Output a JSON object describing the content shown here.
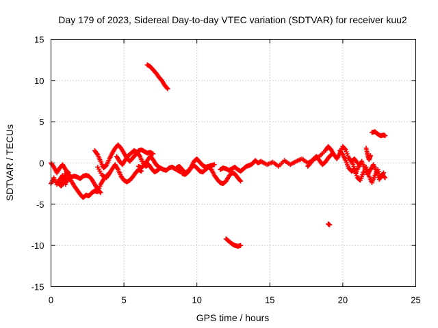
{
  "chart_data": {
    "type": "scatter",
    "title": "Day 179 of 2023, Sidereal Day-to-day VTEC variation (SDTVAR) for receiver kuu2",
    "xlabel": "GPS time / hours",
    "ylabel": "SDTVAR / TECUs",
    "xlim": [
      0,
      25
    ],
    "ylim": [
      -15,
      15
    ],
    "xticks": [
      0,
      5,
      10,
      15,
      20,
      25
    ],
    "yticks": [
      -15,
      -10,
      -5,
      0,
      5,
      10,
      15
    ],
    "grid": true,
    "marker": "+",
    "color": "#ff0000",
    "series": [
      {
        "name": "SDTVAR",
        "segments": [
          {
            "x": [
              0.0,
              0.2,
              0.4,
              0.6,
              0.8,
              1.0,
              1.2,
              1.4,
              1.6,
              1.8,
              2.0,
              2.2,
              2.4,
              2.6,
              2.8,
              3.0,
              3.2,
              3.4,
              3.6,
              3.8,
              4.0
            ],
            "y": [
              -2.5,
              -1.8,
              -2.6,
              -2.0,
              -1.5,
              -2.6,
              -1.8,
              -2.2,
              -2.8,
              -3.3,
              -3.8,
              -4.2,
              -3.9,
              -4.0,
              -3.6,
              -3.4,
              -3.5,
              -2.6,
              -2.0,
              -1.6,
              -1.2
            ]
          },
          {
            "x": [
              0.0,
              0.2,
              0.4,
              0.6,
              0.8,
              1.0,
              1.2,
              1.4,
              1.6,
              1.8,
              2.0,
              2.2,
              2.4,
              2.6,
              2.8,
              3.0,
              3.2,
              3.4
            ],
            "y": [
              0.0,
              -0.5,
              -1.2,
              -0.6,
              -0.2,
              -0.8,
              -1.5,
              -1.7,
              -1.6,
              -1.7,
              -1.9,
              -1.6,
              -1.5,
              -1.6,
              -2.0,
              -2.6,
              -3.2,
              -3.6
            ]
          },
          {
            "x": [
              0.5,
              0.6,
              0.7,
              0.8,
              0.9,
              1.0,
              1.1,
              1.2
            ],
            "y": [
              -2.2,
              -2.6,
              -2.8,
              -2.5,
              -2.0,
              -1.5,
              -1.0,
              -1.2
            ]
          },
          {
            "x": [
              3.0,
              3.2,
              3.4,
              3.6,
              3.8,
              4.0,
              4.2,
              4.4,
              4.6,
              4.8,
              5.0,
              5.2,
              5.4,
              5.6,
              5.8,
              6.0,
              6.2,
              6.4,
              6.6,
              6.8,
              7.0
            ],
            "y": [
              1.5,
              1.0,
              0.2,
              -0.6,
              -0.3,
              0.5,
              1.2,
              1.8,
              2.2,
              1.8,
              1.2,
              0.6,
              0.2,
              0.6,
              1.0,
              1.5,
              1.6,
              1.4,
              1.2,
              1.3,
              1.1
            ]
          },
          {
            "x": [
              3.2,
              3.5,
              3.8,
              4.0,
              4.2,
              4.4,
              4.6,
              4.8,
              5.0,
              5.2,
              5.4,
              5.6,
              5.8,
              6.0,
              6.2
            ],
            "y": [
              -0.5,
              -1.5,
              -1.8,
              -1.3,
              -0.7,
              -0.2,
              -0.8,
              -1.6,
              -2.1,
              -2.3,
              -2.1,
              -1.7,
              -1.2,
              -0.8,
              -1.0
            ]
          },
          {
            "x": [
              4.5,
              4.7,
              4.9,
              5.1,
              5.3,
              5.5,
              5.7,
              5.9,
              6.1,
              6.3,
              6.5,
              6.7,
              6.9,
              7.1,
              7.3,
              7.5,
              7.7,
              7.9,
              8.1,
              8.3,
              8.5,
              8.7,
              8.9
            ],
            "y": [
              0.8,
              0.2,
              -0.2,
              0.4,
              0.9,
              1.2,
              1.5,
              1.3,
              0.8,
              0.0,
              -0.4,
              -0.2,
              -0.7,
              -1.1,
              -0.9,
              -0.6,
              -0.8,
              -0.9,
              -0.6,
              -0.5,
              -0.7,
              -0.9,
              -1.1
            ]
          },
          {
            "x": [
              6.0,
              6.2,
              6.4,
              6.6,
              6.8,
              7.0,
              7.2,
              7.4
            ],
            "y": [
              -0.4,
              -0.6,
              -0.2,
              0.3,
              0.8,
              0.4,
              -0.2,
              -0.5
            ]
          },
          {
            "x": [
              6.6,
              6.8,
              7.0,
              7.2,
              7.4,
              7.6,
              7.8,
              8.0
            ],
            "y": [
              11.9,
              11.7,
              11.3,
              10.9,
              10.4,
              10.0,
              9.4,
              9.0
            ]
          },
          {
            "x": [
              8.6,
              8.8,
              9.0,
              9.2,
              9.4,
              9.6,
              9.8,
              10.0,
              10.2,
              10.4,
              10.6,
              10.8,
              11.0,
              11.2
            ],
            "y": [
              -0.6,
              -0.4,
              -0.8,
              -1.2,
              -1.0,
              -0.5,
              0.2,
              0.5,
              0.1,
              -0.3,
              -0.5,
              -0.4,
              -0.3,
              -0.2
            ]
          },
          {
            "x": [
              9.0,
              9.2,
              9.4,
              9.6,
              9.8,
              10.0,
              10.2,
              10.4,
              10.6,
              10.8,
              11.0,
              11.2,
              11.4,
              11.6,
              11.8,
              12.0,
              12.2,
              12.4,
              12.6,
              12.8,
              13.0
            ],
            "y": [
              -1.3,
              -1.4,
              -1.1,
              -0.6,
              -0.3,
              -0.6,
              -1.0,
              -1.1,
              -0.8,
              -0.5,
              -0.8,
              -1.5,
              -2.0,
              -2.4,
              -2.5,
              -2.2,
              -1.6,
              -1.2,
              -1.3,
              -1.8,
              -2.2
            ]
          },
          {
            "x": [
              11.6,
              11.8,
              12.0,
              12.2,
              12.4,
              12.6,
              12.8,
              13.0,
              13.2,
              13.4,
              13.6,
              13.8,
              14.0,
              14.2,
              14.4
            ],
            "y": [
              -0.8,
              -0.6,
              -0.7,
              -0.9,
              -0.7,
              -0.5,
              -0.8,
              -1.0,
              -0.7,
              -0.4,
              -0.3,
              -0.1,
              0.3,
              0.0,
              0.2
            ]
          },
          {
            "x": [
              12.0,
              12.2,
              12.4,
              12.6,
              12.8,
              13.0
            ],
            "y": [
              -9.2,
              -9.5,
              -9.8,
              -10.0,
              -10.1,
              -10.0
            ]
          },
          {
            "x": [
              14.4,
              14.8,
              15.2,
              15.6,
              16.0,
              16.4,
              16.8,
              17.2,
              17.6,
              18.0,
              18.4,
              18.8,
              19.0,
              19.2,
              19.4,
              19.6,
              19.8,
              20.0,
              20.2,
              20.4,
              20.6,
              20.8,
              21.0
            ],
            "y": [
              0.2,
              -0.2,
              0.1,
              -0.4,
              0.3,
              -0.2,
              0.2,
              0.5,
              0.0,
              0.4,
              0.8,
              1.5,
              2.0,
              1.6,
              1.0,
              0.5,
              1.2,
              2.0,
              1.6,
              0.6,
              0.2,
              0.5,
              0.0
            ]
          },
          {
            "x": [
              17.6,
              17.8,
              18.0,
              18.2,
              18.4,
              18.6,
              18.8,
              19.0,
              19.2
            ],
            "y": [
              -0.4,
              0.0,
              0.5,
              0.8,
              0.3,
              -0.2,
              0.1,
              0.6,
              1.0
            ]
          },
          {
            "x": [
              19.0,
              19.1
            ],
            "y": [
              -7.4,
              -7.5
            ]
          },
          {
            "x": [
              19.8,
              20.0,
              20.2,
              20.4,
              20.6,
              20.8,
              21.0,
              21.2,
              21.4,
              21.6,
              21.8,
              22.0,
              22.2,
              22.4,
              22.6,
              22.8
            ],
            "y": [
              1.5,
              1.0,
              0.3,
              -0.6,
              -1.0,
              -0.8,
              -1.8,
              -2.1,
              -1.2,
              -0.5,
              -1.6,
              -2.4,
              -1.5,
              -0.8,
              -1.8,
              -1.2
            ]
          },
          {
            "x": [
              20.5,
              20.7,
              20.9,
              21.1,
              21.3,
              21.5,
              21.7,
              21.9,
              22.1,
              22.3,
              22.5,
              22.7,
              22.9
            ],
            "y": [
              0.5,
              -0.2,
              -1.2,
              -0.4,
              0.2,
              -0.6,
              -1.4,
              -0.8,
              -0.2,
              -1.0,
              -2.0,
              -1.4,
              -1.8
            ]
          },
          {
            "x": [
              21.6,
              21.7,
              21.8,
              21.9
            ],
            "y": [
              1.8,
              1.0,
              0.4,
              0.9
            ]
          },
          {
            "x": [
              22.0,
              22.2,
              22.4,
              22.6,
              22.8,
              22.9
            ],
            "y": [
              3.7,
              3.8,
              3.5,
              3.3,
              3.4,
              3.3
            ]
          }
        ]
      }
    ]
  }
}
